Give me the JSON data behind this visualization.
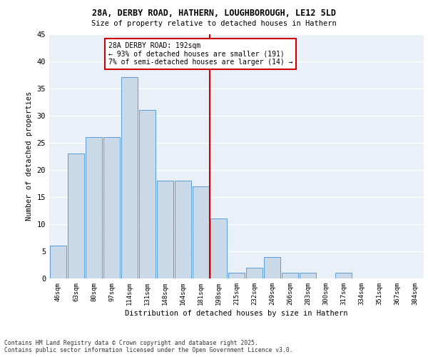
{
  "title1": "28A, DERBY ROAD, HATHERN, LOUGHBOROUGH, LE12 5LD",
  "title2": "Size of property relative to detached houses in Hathern",
  "xlabel": "Distribution of detached houses by size in Hathern",
  "ylabel": "Number of detached properties",
  "categories": [
    "46sqm",
    "63sqm",
    "80sqm",
    "97sqm",
    "114sqm",
    "131sqm",
    "148sqm",
    "164sqm",
    "181sqm",
    "198sqm",
    "215sqm",
    "232sqm",
    "249sqm",
    "266sqm",
    "283sqm",
    "300sqm",
    "317sqm",
    "334sqm",
    "351sqm",
    "367sqm",
    "384sqm"
  ],
  "values": [
    6,
    23,
    26,
    26,
    37,
    31,
    18,
    18,
    17,
    11,
    1,
    2,
    4,
    1,
    1,
    0,
    1,
    0,
    0,
    0,
    0
  ],
  "bar_color": "#c9d9e8",
  "bar_edge_color": "#5b9bd5",
  "vline_color": "#cc0000",
  "annotation_title": "28A DERBY ROAD: 192sqm",
  "annotation_line1": "← 93% of detached houses are smaller (191)",
  "annotation_line2": "7% of semi-detached houses are larger (14) →",
  "annotation_box_color": "#cc0000",
  "footer1": "Contains HM Land Registry data © Crown copyright and database right 2025.",
  "footer2": "Contains public sector information licensed under the Open Government Licence v3.0.",
  "ylim": [
    0,
    45
  ],
  "yticks": [
    0,
    5,
    10,
    15,
    20,
    25,
    30,
    35,
    40,
    45
  ],
  "bg_color": "#eaf0f8",
  "grid_color": "#ffffff"
}
